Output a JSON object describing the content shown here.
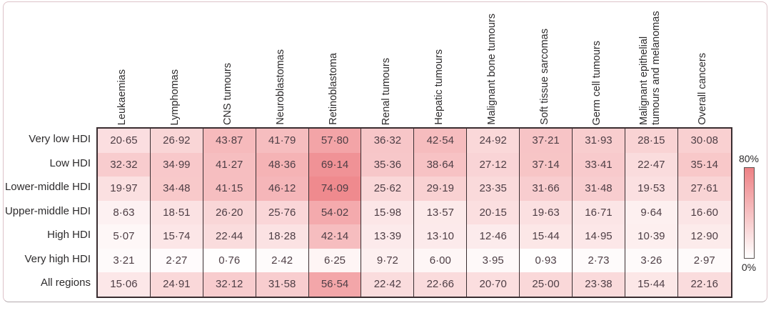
{
  "chart_data": {
    "type": "heatmap",
    "title": "",
    "columns": [
      "Leukaemias",
      "Lymphomas",
      "CNS tumours",
      "Neuroblastomas",
      "Retinoblastoma",
      "Renal tumours",
      "Hepatic tumours",
      "Malignant bone tumours",
      "Soft tissue sarcomas",
      "Germ cell tumours",
      "Malignant epithelial tumours and melanomas",
      "Overall cancers"
    ],
    "rows": [
      {
        "label": "Very low HDI",
        "values": [
          20.65,
          26.92,
          43.87,
          41.79,
          57.8,
          36.32,
          42.54,
          24.92,
          37.21,
          31.93,
          28.15,
          30.08
        ]
      },
      {
        "label": "Low HDI",
        "values": [
          32.32,
          34.99,
          41.27,
          48.36,
          69.14,
          35.36,
          38.64,
          27.12,
          37.14,
          33.41,
          22.47,
          35.14
        ]
      },
      {
        "label": "Lower-middle HDI",
        "values": [
          19.97,
          34.48,
          41.15,
          46.12,
          74.09,
          25.62,
          29.19,
          23.35,
          31.66,
          31.48,
          19.53,
          27.61
        ]
      },
      {
        "label": "Upper-middle HDI",
        "values": [
          8.63,
          18.51,
          26.2,
          25.76,
          54.02,
          15.98,
          13.57,
          20.15,
          19.63,
          16.71,
          9.64,
          16.6
        ]
      },
      {
        "label": "High HDI",
        "values": [
          5.07,
          15.74,
          22.44,
          18.28,
          42.14,
          13.39,
          13.1,
          12.46,
          15.44,
          14.95,
          10.39,
          12.9
        ]
      },
      {
        "label": "Very high HDI",
        "values": [
          3.21,
          2.27,
          0.76,
          2.42,
          6.25,
          9.72,
          6.0,
          3.95,
          0.93,
          2.73,
          3.26,
          2.97
        ]
      },
      {
        "label": "All regions",
        "values": [
          15.06,
          24.91,
          32.12,
          31.58,
          56.54,
          22.42,
          22.66,
          20.7,
          25.0,
          23.38,
          15.44,
          22.16
        ]
      }
    ],
    "value_format": "two-decimals-middot",
    "colorbar": {
      "min": 0,
      "max": 80,
      "min_label": "0%",
      "max_label": "80%",
      "min_color": "#ffffff",
      "max_color": "#ee8185",
      "position": "right"
    },
    "grid": "column-separators-only",
    "legend_position": "right"
  }
}
